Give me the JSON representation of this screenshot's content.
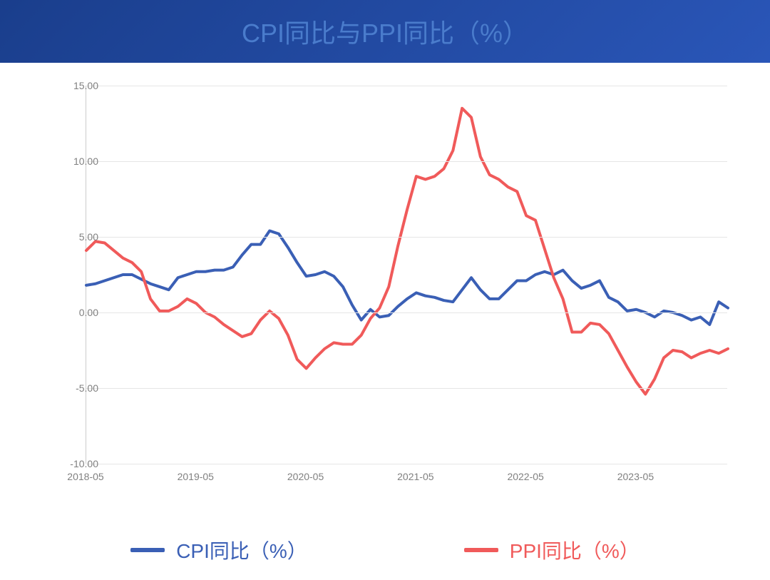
{
  "chart": {
    "type": "line",
    "title": "CPI同比与PPI同比（%）",
    "title_color": "#4a7ccc",
    "title_fontsize": 36,
    "header_bg_gradient_from": "#1a3e8c",
    "header_bg_gradient_to": "#2a56b8",
    "background_color": "#ffffff",
    "plot_bg_color": "#ffffff",
    "grid_color": "#e6e6e6",
    "axis_label_color": "#808080",
    "ylim": [
      -10,
      15
    ],
    "ytick_step": 5,
    "yticks": [
      "-10.00",
      "-5.00",
      "0.00",
      "5.00",
      "10.00",
      "15.00"
    ],
    "_xlabels_note": "labels are at year marks; value = index into x_categories",
    "x_label_points": [
      {
        "idx": 0,
        "label": "2018-05"
      },
      {
        "idx": 12,
        "label": "2019-05"
      },
      {
        "idx": 24,
        "label": "2020-05"
      },
      {
        "idx": 36,
        "label": "2021-05"
      },
      {
        "idx": 48,
        "label": "2022-05"
      },
      {
        "idx": 60,
        "label": "2023-05"
      }
    ],
    "x_categories": [
      "2018-05",
      "2018-06",
      "2018-07",
      "2018-08",
      "2018-09",
      "2018-10",
      "2018-11",
      "2018-12",
      "2019-01",
      "2019-02",
      "2019-03",
      "2019-04",
      "2019-05",
      "2019-06",
      "2019-07",
      "2019-08",
      "2019-09",
      "2019-10",
      "2019-11",
      "2019-12",
      "2020-01",
      "2020-02",
      "2020-03",
      "2020-04",
      "2020-05",
      "2020-06",
      "2020-07",
      "2020-08",
      "2020-09",
      "2020-10",
      "2020-11",
      "2020-12",
      "2021-01",
      "2021-02",
      "2021-03",
      "2021-04",
      "2021-05",
      "2021-06",
      "2021-07",
      "2021-08",
      "2021-09",
      "2021-10",
      "2021-11",
      "2021-12",
      "2022-01",
      "2022-02",
      "2022-03",
      "2022-04",
      "2022-05",
      "2022-06",
      "2022-07",
      "2022-08",
      "2022-09",
      "2022-10",
      "2022-11",
      "2022-12",
      "2023-01",
      "2023-02",
      "2023-03",
      "2023-04",
      "2023-05",
      "2023-06",
      "2023-07",
      "2023-08",
      "2023-09",
      "2023-10",
      "2023-11",
      "2023-12",
      "2024-01",
      "2024-02",
      "2024-03"
    ],
    "series": [
      {
        "name": "CPI同比（%）",
        "color": "#3a5fb5",
        "line_width": 4,
        "values": [
          1.8,
          1.9,
          2.1,
          2.3,
          2.5,
          2.5,
          2.2,
          1.9,
          1.7,
          1.5,
          2.3,
          2.5,
          2.7,
          2.7,
          2.8,
          2.8,
          3.0,
          3.8,
          4.5,
          4.5,
          5.4,
          5.2,
          4.3,
          3.3,
          2.4,
          2.5,
          2.7,
          2.4,
          1.7,
          0.5,
          -0.5,
          0.2,
          -0.3,
          -0.2,
          0.4,
          0.9,
          1.3,
          1.1,
          1.0,
          0.8,
          0.7,
          1.5,
          2.3,
          1.5,
          0.9,
          0.9,
          1.5,
          2.1,
          2.1,
          2.5,
          2.7,
          2.5,
          2.8,
          2.1,
          1.6,
          1.8,
          2.1,
          1.0,
          0.7,
          0.1,
          0.2,
          0.0,
          -0.3,
          0.1,
          0.0,
          -0.2,
          -0.5,
          -0.3,
          -0.8,
          0.7,
          0.3
        ]
      },
      {
        "name": "PPI同比（%）",
        "color": "#f05a5a",
        "line_width": 4,
        "values": [
          4.1,
          4.7,
          4.6,
          4.1,
          3.6,
          3.3,
          2.7,
          0.9,
          0.1,
          0.1,
          0.4,
          0.9,
          0.6,
          0.0,
          -0.3,
          -0.8,
          -1.2,
          -1.6,
          -1.4,
          -0.5,
          0.1,
          -0.4,
          -1.5,
          -3.1,
          -3.7,
          -3.0,
          -2.4,
          -2.0,
          -2.1,
          -2.1,
          -1.5,
          -0.4,
          0.3,
          1.7,
          4.4,
          6.8,
          9.0,
          8.8,
          9.0,
          9.5,
          10.7,
          13.5,
          12.9,
          10.3,
          9.1,
          8.8,
          8.3,
          8.0,
          6.4,
          6.1,
          4.2,
          2.3,
          0.9,
          -1.3,
          -1.3,
          -0.7,
          -0.8,
          -1.4,
          -2.5,
          -3.6,
          -4.6,
          -5.4,
          -4.4,
          -3.0,
          -2.5,
          -2.6,
          -3.0,
          -2.7,
          -2.5,
          -2.7,
          -2.4
        ]
      }
    ],
    "legend": {
      "position": "bottom",
      "fontsize": 28,
      "swatch_width": 48,
      "swatch_height": 6,
      "items": [
        {
          "label": "CPI同比（%）",
          "color": "#3a5fb5"
        },
        {
          "label": "PPI同比（%）",
          "color": "#f05a5a"
        }
      ]
    }
  }
}
